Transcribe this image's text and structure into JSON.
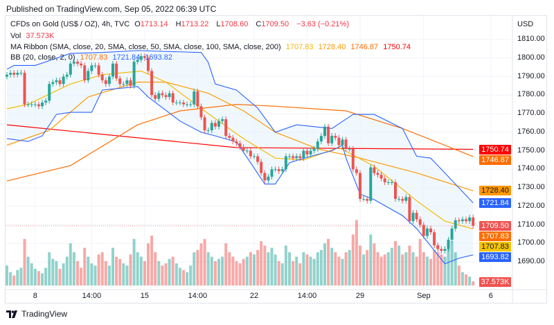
{
  "header": {
    "published": "Published on TradingView.com, Sep 05, 2022 06:39 UTC"
  },
  "legend": {
    "symbol": "CFDs on Gold (US$ / OZ), 4h, TVC",
    "open_label": "O",
    "open": "1713.14",
    "high_label": "H",
    "high": "1713.22",
    "low_label": "L",
    "low": "1708.60",
    "close_label": "C",
    "close": "1709.50",
    "change": "−3.63 (−0.21%)",
    "vol_label": "Vol",
    "vol": "37.573K",
    "ma_label": "MA Ribbon (SMA, close, 20, SMA, close, 50, SMA, close, 100, SMA, close, 200)",
    "ma_values": [
      "1707.83",
      "1728.40",
      "1746.87",
      "1750.74"
    ],
    "bb_label": "BB (20, close, 2, 0)",
    "bb_values": [
      "1707.83",
      "1721.84",
      "1693.82"
    ]
  },
  "colors": {
    "up": "#26a69a",
    "down": "#ef5350",
    "sma20": "#f5b800",
    "sma50": "#ff9800",
    "sma100": "#ff6d00",
    "sma200": "#ff0000",
    "bb": "#2962ff",
    "bb_fill": "#e3f2fd"
  },
  "axis": {
    "currency": "USD",
    "price_ticks": [
      1810,
      1800,
      1790,
      1780,
      1770,
      1760,
      1750,
      1740,
      1730,
      1720,
      1710,
      1700,
      1690
    ],
    "time_labels": [
      {
        "label": "8",
        "bar": 8
      },
      {
        "label": "14:00",
        "bar": 24
      },
      {
        "label": "15",
        "bar": 39
      },
      {
        "label": "14:00",
        "bar": 54
      },
      {
        "label": "22",
        "bar": 70
      },
      {
        "label": "14:00",
        "bar": 85
      },
      {
        "label": "29",
        "bar": 100
      },
      {
        "label": "Sep",
        "bar": 118
      },
      {
        "label": "6",
        "bar": 137
      }
    ]
  },
  "badges": [
    {
      "text": "1750.74",
      "price": 1750.74,
      "bg": "#ff0000",
      "fg": "#ffffff"
    },
    {
      "text": "1746.87",
      "price": 1746.87,
      "bg": "#ff6d00",
      "fg": "#ffffff"
    },
    {
      "text": "1728.40",
      "price": 1728.4,
      "bg": "#ff9800",
      "fg": "#131722"
    },
    {
      "text": "1721.84",
      "price": 1721.84,
      "bg": "#2962ff",
      "fg": "#ffffff"
    },
    {
      "text": "1709.50",
      "price": 1709.5,
      "bg": "#ef5350",
      "fg": "#ffffff"
    },
    {
      "text": "1707.83",
      "price": 1707.83,
      "bg": "#ff6d00",
      "fg": "#ffffff"
    },
    {
      "text": "1707.83",
      "price": 1707.83,
      "bg": "#f5c400",
      "fg": "#131722"
    },
    {
      "text": "1693.82",
      "price": 1693.82,
      "bg": "#2962ff",
      "fg": "#ffffff"
    },
    {
      "text": "37.573K",
      "price": null,
      "bg": "#ef5350",
      "fg": "#ffffff"
    }
  ],
  "footer": {
    "brand": "TradingView"
  },
  "chart_data": {
    "type": "candlestick",
    "title": "CFDs on Gold (US$ / OZ), 4h, TVC",
    "ylabel": "USD",
    "ylim": [
      1685,
      1820
    ],
    "grid": true,
    "last_price": 1709.5,
    "closes": [
      1791,
      1792,
      1791,
      1792,
      1792,
      1775,
      1775,
      1775,
      1775,
      1774,
      1776,
      1777,
      1786,
      1787,
      1788,
      1786,
      1790,
      1791,
      1797,
      1798,
      1797,
      1796,
      1788,
      1793,
      1796,
      1796,
      1791,
      1788,
      1786,
      1790,
      1797,
      1789,
      1786,
      1786,
      1788,
      1785,
      1798,
      1799,
      1801,
      1800,
      1793,
      1780,
      1778,
      1781,
      1780,
      1779,
      1781,
      1776,
      1776,
      1776,
      1775,
      1775,
      1775,
      1782,
      1774,
      1768,
      1761,
      1761,
      1765,
      1763,
      1766,
      1767,
      1758,
      1757,
      1755,
      1754,
      1752,
      1750,
      1750,
      1747,
      1747,
      1744,
      1738,
      1734,
      1736,
      1740,
      1740,
      1739,
      1740,
      1747,
      1747,
      1746,
      1747,
      1746,
      1750,
      1748,
      1750,
      1751,
      1755,
      1758,
      1763,
      1754,
      1758,
      1757,
      1753,
      1756,
      1751,
      1751,
      1740,
      1738,
      1724,
      1724,
      1723,
      1741,
      1738,
      1737,
      1735,
      1733,
      1733,
      1733,
      1724,
      1724,
      1723,
      1725,
      1712,
      1716.5,
      1713,
      1710,
      1704,
      1708,
      1706,
      1699,
      1697,
      1696,
      1697,
      1702,
      1708,
      1712.5,
      1712,
      1713,
      1712,
      1714,
      1709.5
    ],
    "volume_k": [
      180,
      120,
      90,
      140,
      160,
      420,
      260,
      200,
      150,
      130,
      110,
      160,
      300,
      240,
      220,
      150,
      200,
      260,
      380,
      300,
      220,
      160,
      340,
      260,
      200,
      180,
      280,
      300,
      220,
      180,
      340,
      260,
      240,
      200,
      180,
      280,
      420,
      300,
      260,
      220,
      380,
      450,
      300,
      220,
      180,
      200,
      240,
      260,
      200,
      160,
      140,
      120,
      180,
      300,
      320,
      380,
      420,
      300,
      260,
      220,
      240,
      260,
      380,
      300,
      260,
      220,
      200,
      240,
      260,
      300,
      280,
      320,
      400,
      360,
      300,
      340,
      280,
      220,
      200,
      360,
      300,
      220,
      260,
      200,
      300,
      280,
      260,
      240,
      300,
      320,
      380,
      420,
      340,
      300,
      260,
      240,
      300,
      320,
      460,
      590,
      360,
      280,
      320,
      460,
      380,
      300,
      260,
      280,
      300,
      340,
      400,
      360,
      280,
      300,
      360,
      300,
      260,
      420,
      300,
      260,
      240,
      320,
      300,
      280,
      260,
      340,
      400,
      300,
      180,
      120,
      100,
      80,
      37.573
    ],
    "lines": {
      "sma20": [
        [
          0,
          1772.6
        ],
        [
          6,
          1775
        ],
        [
          18,
          1786
        ],
        [
          27,
          1791
        ],
        [
          38,
          1793
        ],
        [
          45,
          1787
        ],
        [
          57,
          1770
        ],
        [
          67,
          1756.5
        ],
        [
          76,
          1746
        ],
        [
          84,
          1745
        ],
        [
          94,
          1751.7
        ],
        [
          104,
          1741.6
        ],
        [
          116,
          1723
        ],
        [
          124,
          1712
        ],
        [
          132,
          1707.83
        ]
      ],
      "sma50": [
        [
          0,
          1753
        ],
        [
          12,
          1761
        ],
        [
          23,
          1779
        ],
        [
          37,
          1787
        ],
        [
          45,
          1787
        ],
        [
          57,
          1781
        ],
        [
          67,
          1771.5
        ],
        [
          76,
          1760
        ],
        [
          88,
          1751
        ],
        [
          100,
          1746
        ],
        [
          116,
          1738
        ],
        [
          132,
          1728.4
        ]
      ],
      "sma100": [
        [
          0,
          1733.7
        ],
        [
          18,
          1742
        ],
        [
          37,
          1764
        ],
        [
          49,
          1771.5
        ],
        [
          65,
          1775
        ],
        [
          76,
          1774
        ],
        [
          96,
          1771.5
        ],
        [
          112,
          1762
        ],
        [
          132,
          1746.87
        ]
      ],
      "sma200": [
        [
          0,
          1764
        ],
        [
          65,
          1751.7
        ],
        [
          132,
          1750.74
        ]
      ],
      "bb_upper": [
        [
          0,
          1794
        ],
        [
          2,
          1796
        ],
        [
          8,
          1796
        ],
        [
          18,
          1802.5
        ],
        [
          27,
          1803
        ],
        [
          37,
          1804
        ],
        [
          55,
          1803
        ],
        [
          57,
          1797.7
        ],
        [
          59,
          1786
        ],
        [
          65,
          1782.7
        ],
        [
          71,
          1773
        ],
        [
          76,
          1760
        ],
        [
          82,
          1764
        ],
        [
          92,
          1762
        ],
        [
          98,
          1769.6
        ],
        [
          104,
          1769.6
        ],
        [
          112,
          1762
        ],
        [
          116,
          1747
        ],
        [
          120,
          1746
        ],
        [
          124,
          1738
        ],
        [
          132,
          1721.84
        ]
      ],
      "bb_lower": [
        [
          0,
          1756.5
        ],
        [
          6,
          1755
        ],
        [
          10,
          1758
        ],
        [
          14,
          1769.6
        ],
        [
          18,
          1770.7
        ],
        [
          24,
          1770.7
        ],
        [
          27,
          1782.7
        ],
        [
          37,
          1784.6
        ],
        [
          40,
          1779
        ],
        [
          49,
          1766
        ],
        [
          55,
          1760
        ],
        [
          59,
          1758
        ],
        [
          65,
          1754.7
        ],
        [
          69,
          1743.5
        ],
        [
          73,
          1732
        ],
        [
          76,
          1732
        ],
        [
          80,
          1743.5
        ],
        [
          86,
          1747
        ],
        [
          92,
          1750
        ],
        [
          95,
          1753
        ],
        [
          96,
          1746
        ],
        [
          100,
          1726.6
        ],
        [
          104,
          1723.6
        ],
        [
          112,
          1715
        ],
        [
          116,
          1708
        ],
        [
          120,
          1698.6
        ],
        [
          124,
          1689
        ],
        [
          128,
          1692
        ],
        [
          132,
          1693.82
        ]
      ]
    }
  }
}
